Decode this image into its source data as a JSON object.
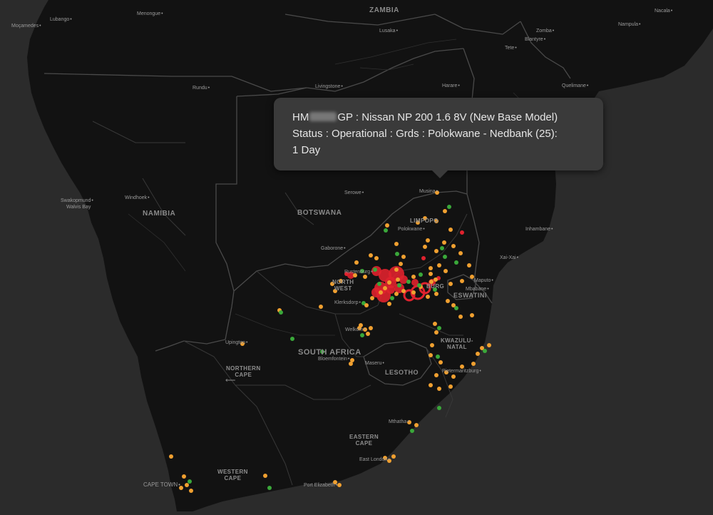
{
  "colors": {
    "background": "#2b2b2b",
    "land": "#121212",
    "border": "#4a4a4a",
    "marker_operational": "#f0a030",
    "marker_online": "#3aa83a",
    "marker_alert": "#e0222e",
    "popup_bg": "#3a3a3a"
  },
  "countries": {
    "zambia": "ZAMBIA",
    "namibia": "NAMIBIA",
    "botswana": "BOTSWANA",
    "south_africa": "SOUTH AFRICA",
    "lesotho": "LESOTHO",
    "eswatini": "ESWATINI"
  },
  "regions": {
    "limpopo": "LIMPOPO",
    "north_west": [
      "NORTH",
      "WEST"
    ],
    "kwazulu_natal": [
      "KWAZULU-",
      "NATAL"
    ],
    "northern_cape": [
      "NORTHERN",
      "CAPE"
    ],
    "eastern_cape": [
      "EASTERN",
      "CAPE"
    ],
    "western_cape": [
      "WESTERN",
      "CAPE"
    ],
    "gauteng_fragment": "BURG"
  },
  "cities": {
    "lubango": "Lubango",
    "menongue": "Menongue",
    "mocamedes": "Moçamedes",
    "lusaka": "Lusaka",
    "nacala": "Nacala",
    "nampula": "Nampula",
    "zomba": "Zomba",
    "blantyre": "Blantyre",
    "tete": "Tete",
    "rundu": "Rundu",
    "livingstone": "Livingstone",
    "harare": "Harare",
    "quelimane": "Quelimane",
    "swakopmund": "Swakopmund",
    "walvis_bay": "Walvis Bay",
    "windhoek": "Windhoek",
    "serowe": "Serowe",
    "musina": "Musina",
    "polokwane": "Polokwane",
    "gaborone": "Gaborone",
    "inhambane": "Inhambane",
    "xai_xai": "Xai-Xai",
    "rustenburg": "Rustenburg",
    "maputo": "Maputo",
    "mbabane": "Mbabane",
    "klerksdorp": "Klerksdorp",
    "welkom": "Welkom",
    "upington": "Upington",
    "bloemfontein": "Bloemfontein",
    "maseru": "Maseru",
    "pietermaritzburg": "Pietermaritzburg",
    "mthatha": "Mthatha",
    "east_london": "East London",
    "cape_town": "CAPE TOWN",
    "port_elizabeth": "Port Elizabeth"
  },
  "popup": {
    "line1_prefix": "HM",
    "line1_suffix": "GP : Nissan NP 200 1.6 8V (New Base Model)",
    "line2": "Status : Operational : Grds : Polokwane - Nedbank (25):",
    "line3": "1 Day"
  }
}
